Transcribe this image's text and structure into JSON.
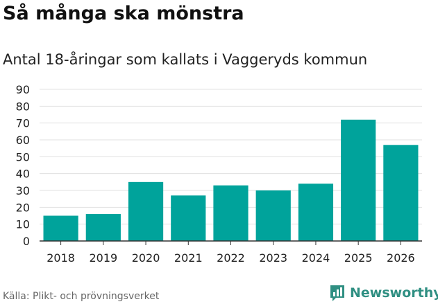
{
  "title": "Så många ska mönstra",
  "subtitle": "Antal 18-åringar som kallats i Vaggeryds kommun",
  "source": "Källa: Plikt- och prövningsverket",
  "brand": "Newsworthy",
  "colors": {
    "bar": "#00a39b",
    "grid": "#e0e0e0",
    "axis": "#333333",
    "brand": "#2f8f82"
  },
  "chart_data": {
    "type": "bar",
    "categories": [
      "2018",
      "2019",
      "2020",
      "2021",
      "2022",
      "2023",
      "2024",
      "2025",
      "2026"
    ],
    "values": [
      15,
      16,
      35,
      27,
      33,
      30,
      34,
      72,
      57
    ],
    "ylim": [
      0,
      90
    ],
    "yticks": [
      0,
      10,
      20,
      30,
      40,
      50,
      60,
      70,
      80,
      90
    ],
    "grid": true
  }
}
